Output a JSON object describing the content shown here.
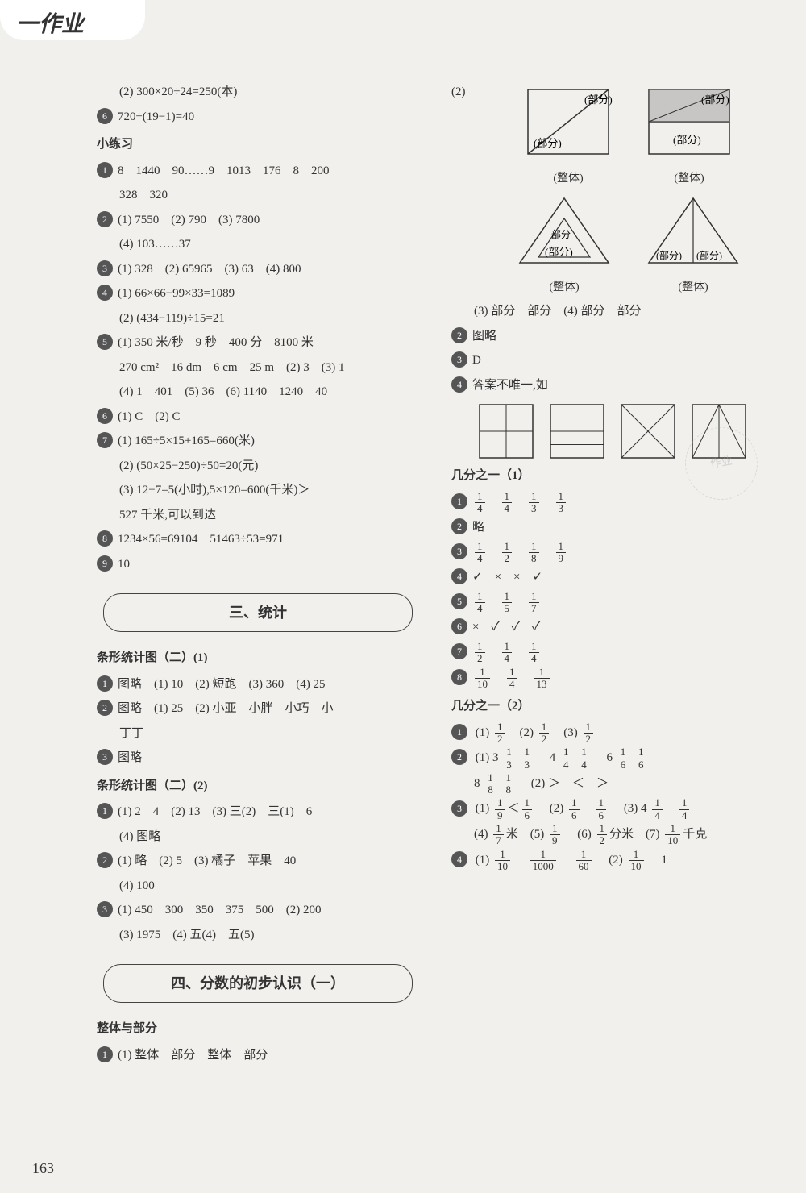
{
  "colors": {
    "badge_bg": "#555555",
    "text": "#333333",
    "page_bg": "#f2f0ed",
    "border": "#444444"
  },
  "header": "一作业",
  "page_number": "163",
  "left": {
    "pre_item": "(2) 300×20÷24=250(本)",
    "item6": "720÷(19−1)=40",
    "small_practice_title": "小练习",
    "sp": {
      "i1a": "8　1440　90……9　1013　176　8　200",
      "i1b": "328　320",
      "i2a": "(1) 7550　(2) 790　(3) 7800",
      "i2b": "(4) 103……37",
      "i3": "(1) 328　(2) 65965　(3) 63　(4) 800",
      "i4a": "(1) 66×66−99×33=1089",
      "i4b": "(2) (434−119)÷15=21",
      "i5a": "(1) 350 米/秒　9 秒　400 分　8100 米",
      "i5b": "270 cm²　16 dm　6 cm　25 m　(2) 3　(3) 1",
      "i5c": "(4) 1　401　(5) 36　(6) 1140　1240　40",
      "i6": "(1) C　(2) C",
      "i7a": "(1) 165÷5×15+165=660(米)",
      "i7b": "(2) (50×25−250)÷50=20(元)",
      "i7c": "(3) 12−7=5(小时),5×120=600(千米)＞",
      "i7d": "527 千米,可以到达",
      "i8": "1234×56=69104　51463÷53=971",
      "i9": "10"
    },
    "sec3_title": "三、统计",
    "bar1_title": "条形统计图（二）(1)",
    "bar1": {
      "i1": "图略　(1) 10　(2) 短跑　(3) 360　(4) 25",
      "i2a": "图略　(1) 25　(2) 小亚　小胖　小巧　小",
      "i2b": "丁丁",
      "i3": "图略"
    },
    "bar2_title": "条形统计图（二）(2)",
    "bar2": {
      "i1a": "(1) 2　4　(2) 13　(3) 三(2)　三(1)　6",
      "i1b": "(4) 图略",
      "i2a": "(1) 略　(2) 5　(3) 橘子　苹果　40",
      "i2b": "(4) 100",
      "i3a": "(1) 450　300　350　375　500　(2) 200",
      "i3b": "(3) 1975　(4) 五(4)　五(5)"
    },
    "sec4_title": "四、分数的初步认识（一）",
    "whole_part_title": "整体与部分",
    "whole_part_i1": "(1) 整体　部分　整体　部分"
  },
  "right": {
    "item2_intro": "(2)",
    "labels": {
      "bufen": "(部分)",
      "zhengti": "(整体)",
      "部分": "部分"
    },
    "row3": "(3) 部分　部分　(4) 部分　部分",
    "i2": "图略",
    "i3": "D",
    "i4": "答案不唯一,如",
    "jfz1_title": "几分之一（1）",
    "jfz1": {
      "i1": [
        [
          "1",
          "4"
        ],
        [
          "1",
          "4"
        ],
        [
          "1",
          "3"
        ],
        [
          "1",
          "3"
        ]
      ],
      "i2": "略",
      "i3": [
        [
          "1",
          "4"
        ],
        [
          "1",
          "2"
        ],
        [
          "1",
          "8"
        ],
        [
          "1",
          "9"
        ]
      ],
      "i4": "✓　×　×　✓",
      "i5": [
        [
          "1",
          "4"
        ],
        [
          "1",
          "5"
        ],
        [
          "1",
          "7"
        ]
      ],
      "i6": "×　✓　✓　✓",
      "i7": [
        [
          "1",
          "2"
        ],
        [
          "1",
          "4"
        ],
        [
          "1",
          "4"
        ]
      ],
      "i8": [
        [
          "1",
          "10"
        ],
        [
          "1",
          "4"
        ],
        [
          "1",
          "13"
        ]
      ]
    },
    "jfz2_title": "几分之一（2）",
    "jfz2": {
      "i1": {
        "p1": [
          "1",
          "2"
        ],
        "p2": [
          "1",
          "2"
        ],
        "p3": [
          "1",
          "2"
        ]
      },
      "i2a": {
        "lead1": "(1) 3",
        "f1": [
          "1",
          "3"
        ],
        "f2": [
          "1",
          "3"
        ],
        "mid4": "4",
        "f3": [
          "1",
          "4"
        ],
        "f4": [
          "1",
          "4"
        ],
        "mid6": "6",
        "f5": [
          "1",
          "6"
        ],
        "f6": [
          "1",
          "6"
        ]
      },
      "i2b": {
        "lead8": "8",
        "f7": [
          "1",
          "8"
        ],
        "f8": [
          "1",
          "8"
        ],
        "tail": "(2) ＞　＜　＞"
      },
      "i3a": {
        "p1l": "(1)",
        "fa": [
          "1",
          "9"
        ],
        "lt": "＜",
        "fb": [
          "1",
          "6"
        ],
        "p2l": "(2)",
        "fc": [
          "1",
          "6"
        ],
        "fd": [
          "1",
          "6"
        ],
        "p3l": "(3) 4",
        "fe": [
          "1",
          "4"
        ],
        "ff": [
          "1",
          "4"
        ]
      },
      "i3b": {
        "p4l": "(4)",
        "fg": [
          "1",
          "7"
        ],
        "mi": "米　(5)",
        "fh": [
          "1",
          "9"
        ],
        "p6l": "(6)",
        "fi": [
          "1",
          "2"
        ],
        "fm": "分米　(7)",
        "fj": [
          "1",
          "10"
        ],
        "kg": "千克"
      },
      "i4": {
        "l": "(1)",
        "fa": [
          "1",
          "10"
        ],
        "fb": [
          "1",
          "1000"
        ],
        "fc": [
          "1",
          "60"
        ],
        "p2": "(2)",
        "fd": [
          "1",
          "10"
        ],
        "one": "1"
      }
    }
  },
  "watermark": "作业"
}
